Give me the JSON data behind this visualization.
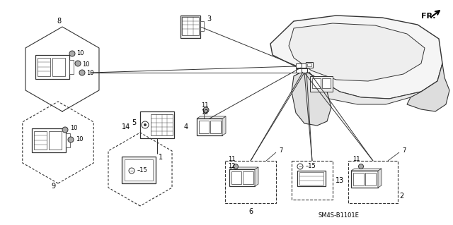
{
  "background_color": "#ffffff",
  "diagram_label": "SM4S-B1101E",
  "fig_width": 6.4,
  "fig_height": 3.19,
  "dpi": 100,
  "line_color": "#333333",
  "dash_color": "#555555"
}
